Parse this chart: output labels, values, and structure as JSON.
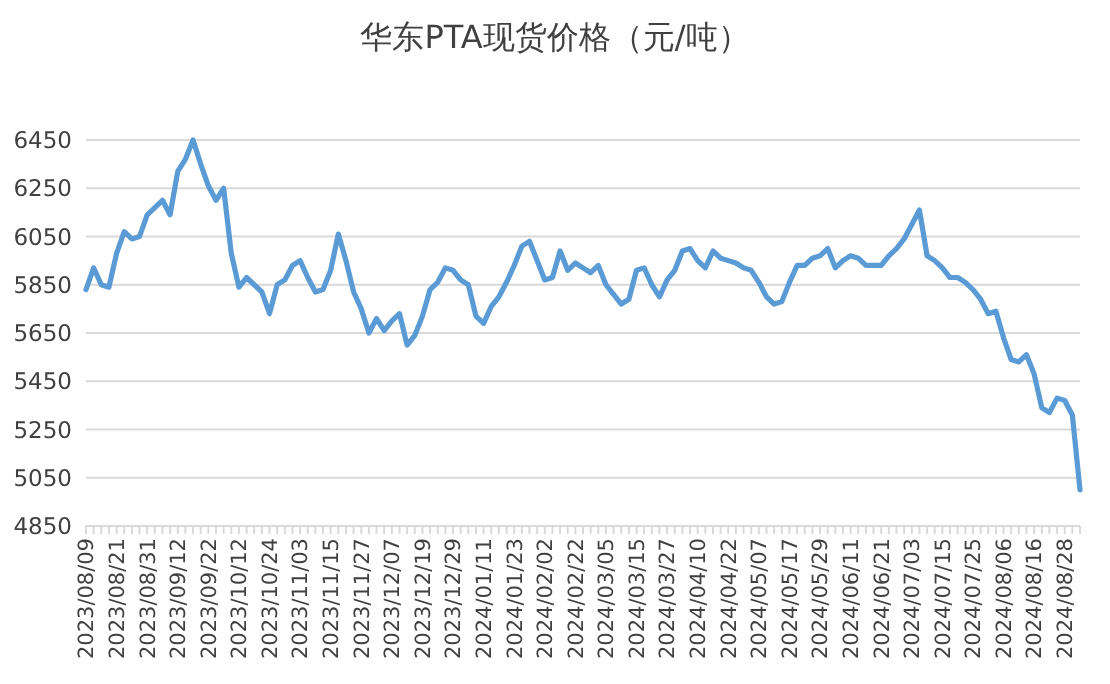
{
  "chart_data": {
    "type": "line",
    "title": "华东PTA现货价格（元/吨）",
    "categories": [
      "2023/08/09",
      null,
      null,
      null,
      "2023/08/21",
      null,
      null,
      null,
      "2023/08/31",
      null,
      null,
      null,
      "2023/09/12",
      null,
      null,
      null,
      "2023/09/22",
      null,
      null,
      null,
      "2023/10/12",
      null,
      null,
      null,
      "2023/10/24",
      null,
      null,
      null,
      "2023/11/03",
      null,
      null,
      null,
      "2023/11/15",
      null,
      null,
      null,
      "2023/11/27",
      null,
      null,
      null,
      "2023/12/07",
      null,
      null,
      null,
      "2023/12/19",
      null,
      null,
      null,
      "2023/12/29",
      null,
      null,
      null,
      "2024/01/11",
      null,
      null,
      null,
      "2024/01/23",
      null,
      null,
      null,
      "2024/02/02",
      null,
      null,
      null,
      "2024/02/22",
      null,
      null,
      null,
      "2024/03/05",
      null,
      null,
      null,
      "2024/03/15",
      null,
      null,
      null,
      "2024/03/27",
      null,
      null,
      null,
      "2024/04/10",
      null,
      null,
      null,
      "2024/04/22",
      null,
      null,
      null,
      "2024/05/07",
      null,
      null,
      null,
      "2024/05/17",
      null,
      null,
      null,
      "2024/05/29",
      null,
      null,
      null,
      "2024/06/11",
      null,
      null,
      null,
      "2024/06/21",
      null,
      null,
      null,
      "2024/07/03",
      null,
      null,
      null,
      "2024/07/15",
      null,
      null,
      null,
      "2024/07/25",
      null,
      null,
      null,
      "2024/08/06",
      null,
      null,
      null,
      "2024/08/16",
      null,
      null,
      null,
      "2024/08/28",
      null,
      null
    ],
    "series": [
      {
        "color": "#5b9bd5",
        "values": [
          5830,
          5920,
          5850,
          5840,
          5980,
          6070,
          6040,
          6050,
          6140,
          6170,
          6200,
          6140,
          6320,
          6370,
          6450,
          6350,
          6260,
          6200,
          6250,
          5980,
          5840,
          5880,
          5850,
          5820,
          5730,
          5850,
          5870,
          5930,
          5950,
          5880,
          5820,
          5830,
          5910,
          6060,
          5950,
          5820,
          5750,
          5650,
          5710,
          5660,
          5700,
          5730,
          5600,
          5640,
          5720,
          5830,
          5860,
          5920,
          5910,
          5870,
          5850,
          5720,
          5690,
          5760,
          5800,
          5860,
          5930,
          6010,
          6030,
          5950,
          5870,
          5880,
          5990,
          5910,
          5940,
          5920,
          5900,
          5930,
          5850,
          5810,
          5770,
          5790,
          5910,
          5920,
          5850,
          5800,
          5870,
          5910,
          5990,
          6000,
          5950,
          5920,
          5990,
          5960,
          5950,
          5940,
          5920,
          5910,
          5860,
          5800,
          5770,
          5780,
          5860,
          5930,
          5930,
          5960,
          5970,
          6000,
          5920,
          5950,
          5970,
          5960,
          5930,
          5930,
          5930,
          5970,
          6000,
          6040,
          6100,
          6160,
          5970,
          5950,
          5920,
          5880,
          5880,
          5860,
          5830,
          5790,
          5730,
          5740,
          5630,
          5540,
          5530,
          5560,
          5480,
          5340,
          5320,
          5380,
          5370,
          5310,
          5000
        ]
      }
    ],
    "ylim": [
      4850,
      6450
    ],
    "yticks": [
      4850,
      5050,
      5250,
      5450,
      5650,
      5850,
      6050,
      6250,
      6450
    ],
    "grid": "y",
    "marker": "none",
    "line_style": "solid"
  }
}
